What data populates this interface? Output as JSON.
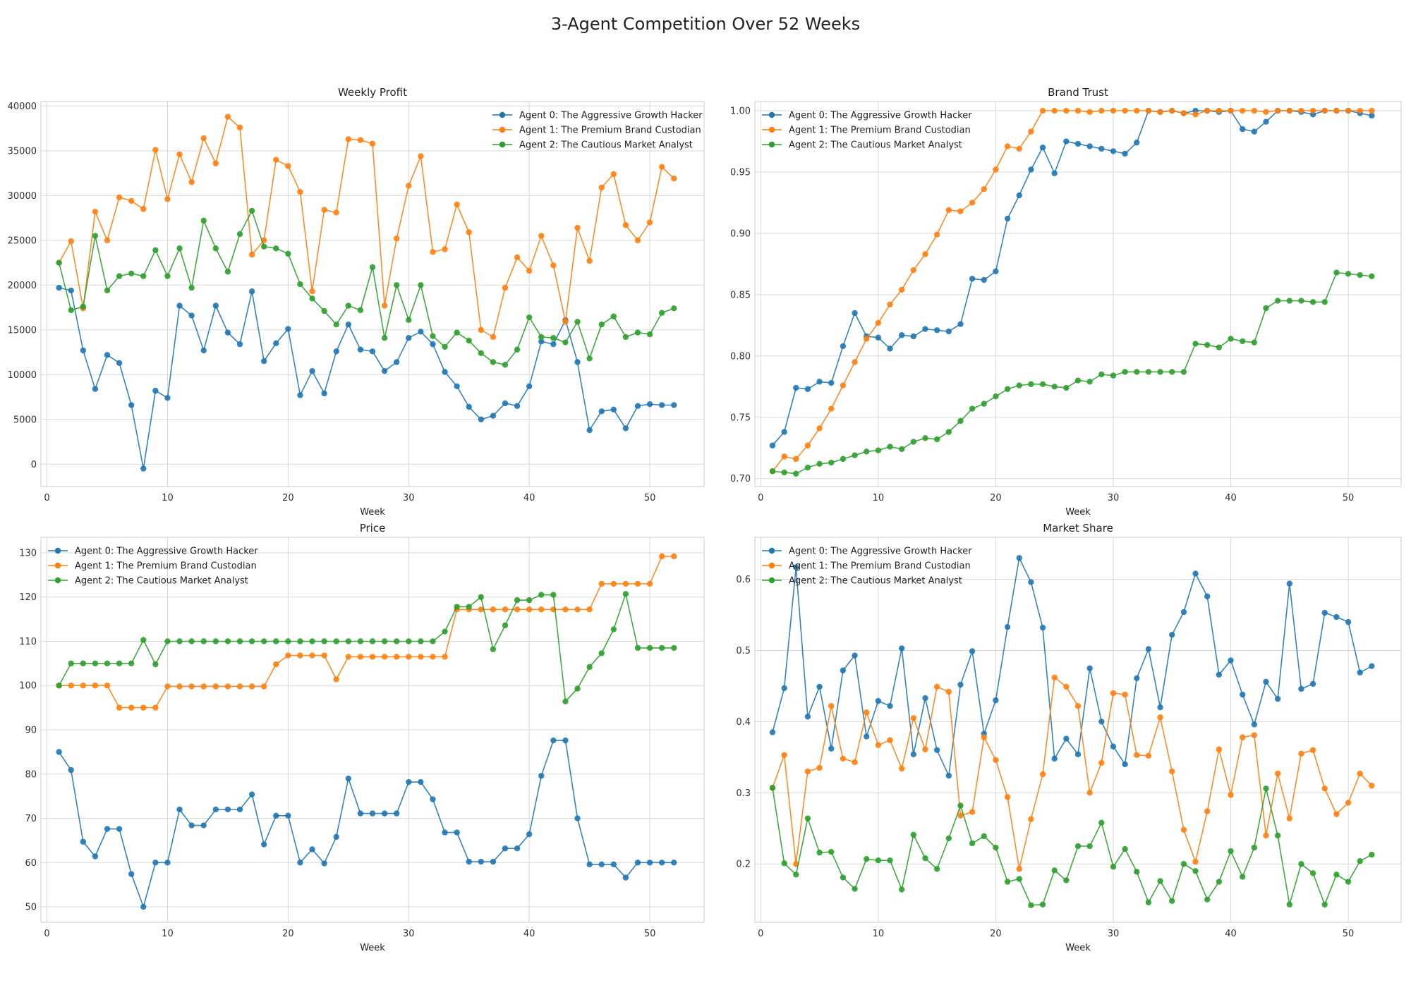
{
  "figure": {
    "suptitle": "3-Agent Competition Over 52 Weeks",
    "series_names": [
      "Agent 0: The Aggressive Growth Hacker",
      "Agent 1: The Premium Brand Custodian",
      "Agent 2: The Cautious Market Analyst"
    ],
    "colors": [
      "#1f77b4",
      "#ff7f0e",
      "#2ca02c"
    ]
  },
  "chart_data": [
    {
      "type": "line",
      "title": "Weekly Profit",
      "xlabel": "Week",
      "ylabel": "",
      "xlim": [
        -0.5,
        54.5
      ],
      "ylim": [
        -2500,
        40500
      ],
      "xticks": [
        0,
        10,
        20,
        30,
        40,
        50
      ],
      "yticks": [
        0,
        5000,
        10000,
        15000,
        20000,
        25000,
        30000,
        35000,
        40000
      ],
      "grid": true,
      "legend": "top-right",
      "x": [
        1,
        2,
        3,
        4,
        5,
        6,
        7,
        8,
        9,
        10,
        11,
        12,
        13,
        14,
        15,
        16,
        17,
        18,
        19,
        20,
        21,
        22,
        23,
        24,
        25,
        26,
        27,
        28,
        29,
        30,
        31,
        32,
        33,
        34,
        35,
        36,
        37,
        38,
        39,
        40,
        41,
        42,
        43,
        44,
        45,
        46,
        47,
        48,
        49,
        50,
        51,
        52
      ],
      "series": [
        {
          "name": "Agent 0: The Aggressive Growth Hacker",
          "values": [
            19700,
            19400,
            12700,
            8400,
            12200,
            11300,
            6600,
            -500,
            8200,
            7400,
            17700,
            16600,
            12700,
            17700,
            14700,
            13400,
            19300,
            11500,
            13500,
            15100,
            7700,
            10400,
            7900,
            12600,
            15600,
            12800,
            12600,
            10400,
            11400,
            14100,
            14800,
            13400,
            10300,
            8700,
            6400,
            5000,
            5400,
            6800,
            6500,
            8700,
            13700,
            13400,
            16100,
            11400,
            3800,
            5900,
            6100,
            4000,
            6500,
            6700,
            6600,
            6600
          ]
        },
        {
          "name": "Agent 1: The Premium Brand Custodian",
          "values": [
            22500,
            24900,
            17400,
            28200,
            25000,
            29800,
            29400,
            28500,
            35100,
            29600,
            34600,
            31500,
            36400,
            33600,
            38800,
            37600,
            23400,
            25000,
            34000,
            33300,
            30400,
            19300,
            28400,
            28100,
            36300,
            36200,
            35800,
            17700,
            25200,
            31100,
            34400,
            23700,
            24000,
            29000,
            25900,
            15000,
            14200,
            19700,
            23100,
            21600,
            25500,
            22200,
            15900,
            26400,
            22700,
            30900,
            32400,
            26700,
            25000,
            27000,
            33200,
            31900
          ]
        },
        {
          "name": "Agent 2: The Cautious Market Analyst",
          "values": [
            22500,
            17200,
            17600,
            25500,
            19400,
            21000,
            21300,
            21000,
            23900,
            21000,
            24100,
            19700,
            27200,
            24100,
            21500,
            25700,
            28300,
            24300,
            24100,
            23500,
            20100,
            18500,
            17100,
            15600,
            17700,
            17200,
            22000,
            14100,
            20000,
            16100,
            20000,
            14300,
            13100,
            14700,
            13800,
            12400,
            11400,
            11100,
            12800,
            16400,
            14200,
            14100,
            13600,
            15900,
            11800,
            15600,
            16500,
            14200,
            14700,
            14500,
            16900,
            17400
          ]
        }
      ]
    },
    {
      "type": "line",
      "title": "Brand Trust",
      "xlabel": "Week",
      "ylabel": "",
      "xlim": [
        -0.5,
        54.5
      ],
      "ylim": [
        0.6935,
        1.0075
      ],
      "xticks": [
        0,
        10,
        20,
        30,
        40,
        50
      ],
      "yticks": [
        0.7,
        0.75,
        0.8,
        0.85,
        0.9,
        0.95,
        1.0
      ],
      "ytick_labels": [
        "0.70",
        "0.75",
        "0.80",
        "0.85",
        "0.90",
        "0.95",
        "1.00"
      ],
      "grid": true,
      "legend": "top-left",
      "x": [
        1,
        2,
        3,
        4,
        5,
        6,
        7,
        8,
        9,
        10,
        11,
        12,
        13,
        14,
        15,
        16,
        17,
        18,
        19,
        20,
        21,
        22,
        23,
        24,
        25,
        26,
        27,
        28,
        29,
        30,
        31,
        32,
        33,
        34,
        35,
        36,
        37,
        38,
        39,
        40,
        41,
        42,
        43,
        44,
        45,
        46,
        47,
        48,
        49,
        50,
        51,
        52
      ],
      "series": [
        {
          "name": "Agent 0: The Aggressive Growth Hacker",
          "values": [
            0.727,
            0.738,
            0.774,
            0.773,
            0.779,
            0.778,
            0.808,
            0.835,
            0.816,
            0.815,
            0.806,
            0.817,
            0.816,
            0.822,
            0.821,
            0.82,
            0.826,
            0.863,
            0.862,
            0.869,
            0.912,
            0.931,
            0.952,
            0.97,
            0.949,
            0.975,
            0.973,
            0.971,
            0.969,
            0.967,
            0.965,
            0.974,
            1.0,
            0.999,
            1.0,
            0.998,
            1.0,
            1.0,
            0.999,
            1.0,
            0.985,
            0.983,
            0.991,
            1.0,
            1.0,
            0.999,
            0.997,
            1.0,
            1.0,
            1.0,
            0.998,
            0.996
          ]
        },
        {
          "name": "Agent 1: The Premium Brand Custodian",
          "values": [
            0.706,
            0.718,
            0.716,
            0.727,
            0.741,
            0.757,
            0.776,
            0.795,
            0.814,
            0.827,
            0.842,
            0.854,
            0.87,
            0.883,
            0.899,
            0.919,
            0.918,
            0.925,
            0.936,
            0.952,
            0.971,
            0.969,
            0.983,
            1.0,
            1.0,
            1.0,
            1.0,
            0.999,
            1.0,
            1.0,
            1.0,
            1.0,
            1.0,
            0.999,
            1.0,
            0.998,
            0.997,
            1.0,
            1.0,
            1.0,
            1.0,
            1.0,
            0.999,
            1.0,
            1.0,
            1.0,
            1.0,
            1.0,
            1.0,
            1.0,
            1.0,
            1.0
          ]
        },
        {
          "name": "Agent 2: The Cautious Market Analyst",
          "values": [
            0.706,
            0.705,
            0.704,
            0.709,
            0.712,
            0.713,
            0.716,
            0.719,
            0.722,
            0.723,
            0.726,
            0.724,
            0.73,
            0.733,
            0.732,
            0.738,
            0.747,
            0.757,
            0.761,
            0.767,
            0.773,
            0.776,
            0.777,
            0.777,
            0.775,
            0.774,
            0.78,
            0.779,
            0.785,
            0.784,
            0.787,
            0.787,
            0.787,
            0.787,
            0.787,
            0.787,
            0.81,
            0.809,
            0.807,
            0.814,
            0.812,
            0.811,
            0.839,
            0.845,
            0.845,
            0.845,
            0.844,
            0.844,
            0.868,
            0.867,
            0.866,
            0.865
          ]
        }
      ]
    },
    {
      "type": "line",
      "title": "Price",
      "xlabel": "Week",
      "ylabel": "",
      "xlim": [
        -0.5,
        54.5
      ],
      "ylim": [
        46.5,
        133.5
      ],
      "xticks": [
        0,
        10,
        20,
        30,
        40,
        50
      ],
      "yticks": [
        50,
        60,
        70,
        80,
        90,
        100,
        110,
        120,
        130
      ],
      "grid": true,
      "legend": "top-left",
      "x": [
        1,
        2,
        3,
        4,
        5,
        6,
        7,
        8,
        9,
        10,
        11,
        12,
        13,
        14,
        15,
        16,
        17,
        18,
        19,
        20,
        21,
        22,
        23,
        24,
        25,
        26,
        27,
        28,
        29,
        30,
        31,
        32,
        33,
        34,
        35,
        36,
        37,
        38,
        39,
        40,
        41,
        42,
        43,
        44,
        45,
        46,
        47,
        48,
        49,
        50,
        51,
        52
      ],
      "series": [
        {
          "name": "Agent 0: The Aggressive Growth Hacker",
          "values": [
            85.0,
            80.9,
            64.7,
            61.4,
            67.6,
            67.6,
            57.4,
            50.0,
            60.0,
            60.0,
            72.0,
            68.4,
            68.4,
            72.0,
            72.0,
            72.0,
            75.4,
            64.1,
            70.6,
            70.6,
            60.0,
            63.0,
            59.8,
            65.8,
            79.0,
            71.1,
            71.1,
            71.1,
            71.1,
            78.2,
            78.2,
            74.3,
            66.8,
            66.8,
            60.2,
            60.2,
            60.2,
            63.2,
            63.2,
            66.4,
            79.6,
            87.6,
            87.6,
            70.0,
            59.6,
            59.6,
            59.6,
            56.6,
            60.0,
            60.0,
            60.0,
            60.0
          ]
        },
        {
          "name": "Agent 1: The Premium Brand Custodian",
          "values": [
            100,
            100,
            100,
            100,
            100,
            95,
            95,
            95,
            95,
            99.8,
            99.8,
            99.8,
            99.8,
            99.8,
            99.8,
            99.8,
            99.8,
            99.8,
            104.8,
            106.8,
            106.8,
            106.8,
            106.8,
            101.4,
            106.5,
            106.5,
            106.5,
            106.5,
            106.5,
            106.5,
            106.5,
            106.5,
            106.5,
            117.2,
            117.2,
            117.2,
            117.2,
            117.2,
            117.2,
            117.2,
            117.2,
            117.2,
            117.2,
            117.2,
            117.2,
            123.0,
            123.0,
            123.0,
            123.0,
            123.0,
            129.2,
            129.2
          ]
        },
        {
          "name": "Agent 2: The Cautious Market Analyst",
          "values": [
            100,
            105,
            105,
            105,
            105,
            105,
            105,
            110.3,
            104.8,
            110,
            110,
            110,
            110,
            110,
            110,
            110,
            110,
            110,
            110,
            110,
            110,
            110,
            110,
            110,
            110,
            110,
            110,
            110,
            110,
            110,
            110,
            110,
            112.2,
            117.8,
            117.8,
            120.0,
            108.2,
            113.6,
            119.3,
            119.3,
            120.5,
            120.5,
            96.4,
            99.3,
            104.2,
            107.3,
            112.7,
            120.7,
            108.5,
            108.5,
            108.5,
            108.5
          ]
        }
      ]
    },
    {
      "type": "line",
      "title": "Market Share",
      "xlabel": "Week",
      "ylabel": "",
      "xlim": [
        -0.5,
        54.5
      ],
      "ylim": [
        0.118,
        0.659
      ],
      "xticks": [
        0,
        10,
        20,
        30,
        40,
        50
      ],
      "yticks": [
        0.2,
        0.3,
        0.4,
        0.5,
        0.6
      ],
      "ytick_labels": [
        "0.2",
        "0.3",
        "0.4",
        "0.5",
        "0.6"
      ],
      "grid": true,
      "legend": "top-left",
      "x": [
        1,
        2,
        3,
        4,
        5,
        6,
        7,
        8,
        9,
        10,
        11,
        12,
        13,
        14,
        15,
        16,
        17,
        18,
        19,
        20,
        21,
        22,
        23,
        24,
        25,
        26,
        27,
        28,
        29,
        30,
        31,
        32,
        33,
        34,
        35,
        36,
        37,
        38,
        39,
        40,
        41,
        42,
        43,
        44,
        45,
        46,
        47,
        48,
        49,
        50,
        51,
        52
      ],
      "series": [
        {
          "name": "Agent 0: The Aggressive Growth Hacker",
          "values": [
            0.385,
            0.447,
            0.617,
            0.407,
            0.449,
            0.362,
            0.472,
            0.493,
            0.379,
            0.429,
            0.422,
            0.503,
            0.354,
            0.433,
            0.36,
            0.324,
            0.452,
            0.499,
            0.383,
            0.43,
            0.533,
            0.63,
            0.596,
            0.532,
            0.348,
            0.376,
            0.354,
            0.475,
            0.4,
            0.365,
            0.34,
            0.461,
            0.502,
            0.42,
            0.522,
            0.554,
            0.608,
            0.576,
            0.466,
            0.486,
            0.438,
            0.396,
            0.456,
            0.432,
            0.594,
            0.446,
            0.453,
            0.553,
            0.547,
            0.54,
            0.469,
            0.478
          ]
        },
        {
          "name": "Agent 1: The Premium Brand Custodian",
          "values": [
            0.307,
            0.353,
            0.2,
            0.33,
            0.335,
            0.422,
            0.348,
            0.343,
            0.413,
            0.367,
            0.374,
            0.334,
            0.405,
            0.361,
            0.449,
            0.442,
            0.268,
            0.273,
            0.378,
            0.346,
            0.294,
            0.193,
            0.263,
            0.326,
            0.462,
            0.449,
            0.422,
            0.3,
            0.342,
            0.44,
            0.438,
            0.353,
            0.352,
            0.406,
            0.33,
            0.248,
            0.203,
            0.274,
            0.361,
            0.297,
            0.378,
            0.381,
            0.24,
            0.327,
            0.264,
            0.355,
            0.36,
            0.306,
            0.27,
            0.286,
            0.327,
            0.31
          ]
        },
        {
          "name": "Agent 2: The Cautious Market Analyst",
          "values": [
            0.307,
            0.201,
            0.185,
            0.264,
            0.216,
            0.217,
            0.181,
            0.165,
            0.207,
            0.205,
            0.205,
            0.164,
            0.241,
            0.208,
            0.193,
            0.236,
            0.282,
            0.229,
            0.239,
            0.223,
            0.175,
            0.179,
            0.142,
            0.143,
            0.191,
            0.177,
            0.225,
            0.225,
            0.258,
            0.196,
            0.221,
            0.189,
            0.146,
            0.176,
            0.148,
            0.2,
            0.19,
            0.15,
            0.175,
            0.218,
            0.182,
            0.223,
            0.306,
            0.24,
            0.143,
            0.2,
            0.187,
            0.143,
            0.185,
            0.175,
            0.204,
            0.213
          ]
        }
      ]
    }
  ]
}
